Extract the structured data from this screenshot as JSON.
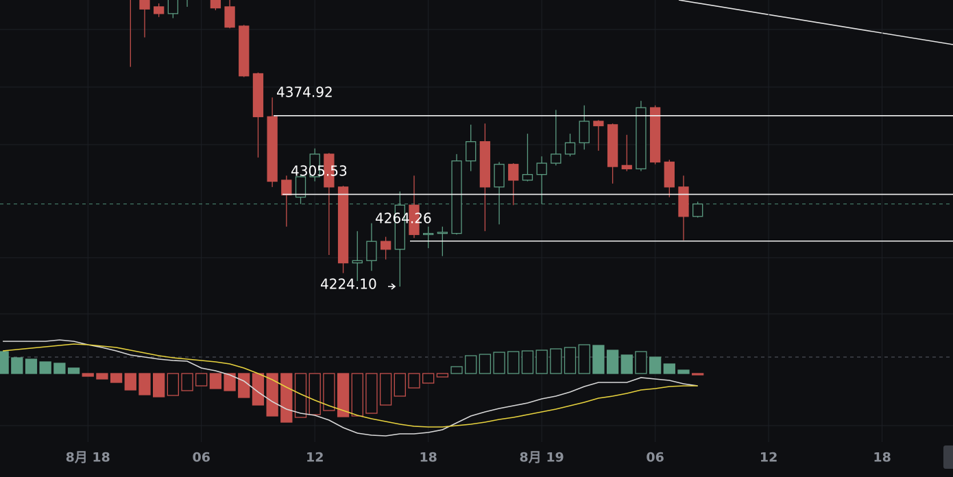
{
  "chart_data": [
    {
      "type": "candlestick",
      "x": [
        2.25,
        3,
        3.75,
        4.5,
        5.25,
        6.75,
        7.5,
        8.25,
        9,
        9.75,
        10.5,
        11.25,
        12,
        12.75,
        13.5,
        14.25,
        15,
        15.75,
        16.5,
        17.25,
        18,
        18.75,
        19.5,
        20.25,
        21,
        21.75,
        22.5,
        23.25,
        24,
        24.75,
        25.5,
        26.25,
        27,
        27.75,
        28.5,
        29.25,
        30,
        30.75,
        31.5,
        32.25
      ],
      "open": [
        4486,
        4480,
        4471,
        4465,
        4480,
        4480,
        4471,
        4454,
        4412,
        4374,
        4318,
        4303,
        4321,
        4341,
        4312,
        4245,
        4247,
        4264,
        4257,
        4296,
        4270,
        4271,
        4271,
        4335,
        4352,
        4312,
        4332,
        4318,
        4323,
        4333,
        4341,
        4351,
        4370,
        4367,
        4331,
        4328,
        4382,
        4334,
        4312,
        4286
      ],
      "high": [
        4492,
        4484,
        4474,
        4485,
        4488,
        4484,
        4477,
        4455,
        4413,
        4391,
        4322,
        4323,
        4346,
        4342,
        4313,
        4273,
        4280,
        4268,
        4308,
        4322,
        4277,
        4277,
        4341,
        4367,
        4368,
        4334,
        4333,
        4359,
        4339,
        4380,
        4359,
        4384,
        4371,
        4368,
        4358,
        4388,
        4384,
        4336,
        4322,
        4299
      ],
      "low": [
        4418,
        4444,
        4462,
        4461,
        4471,
        4468,
        4452,
        4409,
        4338,
        4312,
        4277,
        4297,
        4317,
        4252,
        4236,
        4229,
        4238,
        4248,
        4224.1,
        4267,
        4258,
        4251,
        4270,
        4326,
        4273,
        4279,
        4296,
        4317,
        4297,
        4331,
        4339,
        4345,
        4344,
        4315,
        4326,
        4326,
        4332,
        4303,
        4265,
        4285
      ],
      "close": [
        4480,
        4469,
        4465,
        4479,
        4483,
        4470,
        4453,
        4410,
        4374,
        4317,
        4305,
        4321,
        4341,
        4312,
        4245,
        4247,
        4264,
        4257,
        4296,
        4270,
        4271,
        4272,
        4335,
        4352,
        4312,
        4332,
        4318,
        4323,
        4333,
        4341,
        4351,
        4370,
        4366,
        4330,
        4328,
        4382,
        4334,
        4312,
        4286,
        4297
      ],
      "up_color": "#5c9c82",
      "down_color": "#c4504c",
      "xlim": [
        -4.65,
        45.75
      ],
      "ylim": [
        4200,
        4477
      ],
      "xticks": [
        {
          "value": 0,
          "label": "8月 18"
        },
        {
          "value": 6,
          "label": "06"
        },
        12,
        18,
        {
          "value": 24,
          "label": "8月 19"
        },
        {
          "value": 30,
          "label": "06"
        },
        {
          "value": 36,
          "label": "12"
        },
        {
          "value": 42,
          "label": "18"
        }
      ],
      "grid": true,
      "levels": [
        4374.92,
        4305.53,
        4264.26
      ],
      "low_marker": {
        "value": 4224.1,
        "label": "4224.10"
      },
      "last_price": 4297
    },
    {
      "type": "macd",
      "x": [
        -4.5,
        -3.75,
        -3,
        -2.25,
        -1.5,
        -0.75,
        0,
        0.75,
        1.5,
        2.25,
        3,
        3.75,
        4.5,
        5.25,
        6,
        6.75,
        7.5,
        8.25,
        9,
        9.75,
        10.5,
        11.25,
        12,
        12.75,
        13.5,
        14.25,
        15,
        15.75,
        16.5,
        17.25,
        18,
        18.75,
        19.5,
        20.25,
        21,
        21.75,
        22.5,
        23.25,
        24,
        24.75,
        25.5,
        26.25,
        27,
        27.75,
        28.5,
        29.25,
        30,
        30.75,
        31.5,
        32.25
      ],
      "xlim": [
        -4.65,
        45.75
      ],
      "ylim": [
        -10,
        8.7
      ],
      "histogram": [
        3.2,
        2.3,
        2.1,
        1.7,
        1.5,
        0.8,
        -0.4,
        -0.8,
        -1.3,
        -2.4,
        -3.1,
        -3.4,
        -3.2,
        -2.5,
        -1.8,
        -2.2,
        -2.5,
        -3.5,
        -4.6,
        -6.2,
        -7.1,
        -6.4,
        -6.0,
        -5.4,
        -6.3,
        -6.2,
        -5.8,
        -4.6,
        -3.3,
        -2.1,
        -1.4,
        -0.5,
        1.0,
        2.6,
        2.8,
        3.1,
        3.2,
        3.3,
        3.4,
        3.6,
        3.8,
        4.2,
        4.1,
        3.4,
        2.7,
        3.2,
        2.4,
        1.4,
        0.5,
        -0.2
      ],
      "up_color": "#5c9c82",
      "down_color": "#c4504c",
      "series": [
        {
          "color": "#d9d9d9",
          "values": [
            4.7,
            4.7,
            4.7,
            4.7,
            4.9,
            4.7,
            4.2,
            3.8,
            3.3,
            2.7,
            2.4,
            2.1,
            1.9,
            1.8,
            0.8,
            0.4,
            -0.2,
            -1.1,
            -2.7,
            -4.1,
            -5.2,
            -5.8,
            -6.1,
            -6.8,
            -7.9,
            -8.7,
            -9.0,
            -9.1,
            -8.8,
            -8.8,
            -8.6,
            -8.2,
            -7.2,
            -6.2,
            -5.6,
            -5.1,
            -4.7,
            -4.3,
            -3.7,
            -3.3,
            -2.7,
            -1.9,
            -1.3,
            -1.3,
            -1.3,
            -0.6,
            -0.8,
            -1.0,
            -1.5,
            -1.8
          ]
        },
        {
          "color": "#e8d33e",
          "values": [
            3.3,
            3.5,
            3.7,
            3.9,
            4.1,
            4.3,
            4.2,
            4.0,
            3.8,
            3.4,
            3.0,
            2.6,
            2.3,
            2.1,
            1.9,
            1.7,
            1.4,
            0.8,
            0.0,
            -0.9,
            -2.0,
            -3.0,
            -3.9,
            -4.7,
            -5.4,
            -6.1,
            -6.6,
            -7.0,
            -7.4,
            -7.7,
            -7.8,
            -7.8,
            -7.6,
            -7.4,
            -7.1,
            -6.7,
            -6.4,
            -6.0,
            -5.6,
            -5.2,
            -4.7,
            -4.2,
            -3.6,
            -3.3,
            -2.9,
            -2.4,
            -2.2,
            -1.9,
            -1.8,
            -1.8
          ]
        }
      ]
    }
  ]
}
